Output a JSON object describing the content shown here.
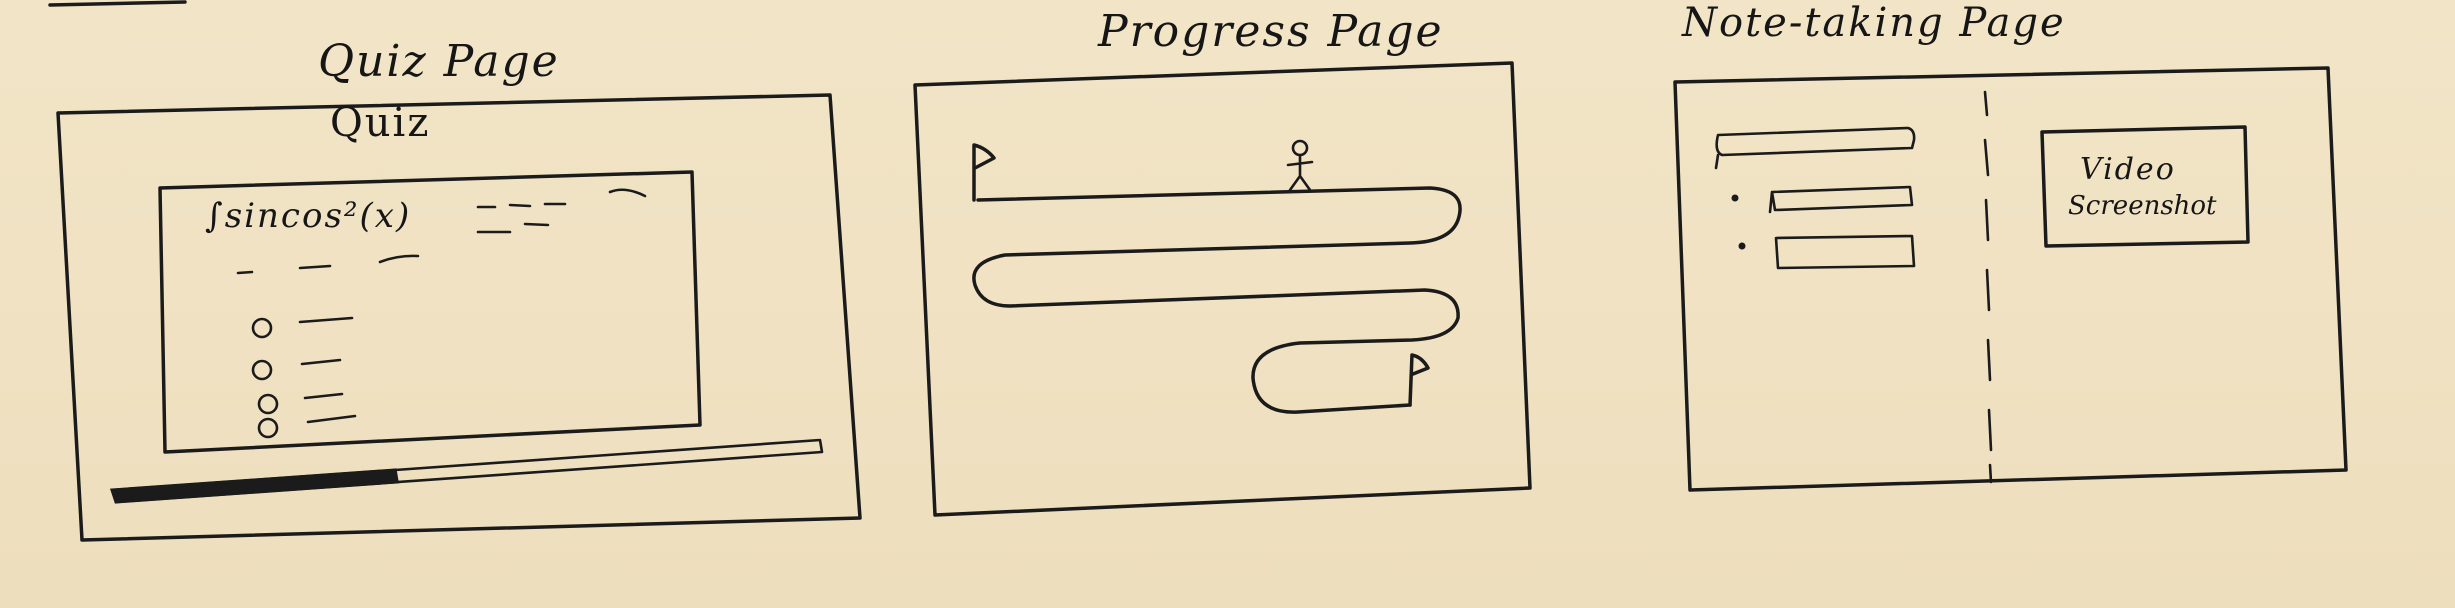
{
  "panels": {
    "quiz": {
      "title": "Quiz Page",
      "heading": "Quiz",
      "question_formula": "∫sincos²(x)",
      "options_count": 4,
      "progress_fraction": 0.4
    },
    "progress": {
      "title": "Progress Page"
    },
    "notes": {
      "title": "Note-taking Page",
      "video_label_line1": "Video",
      "video_label_line2": "Screenshot"
    }
  },
  "ink_color": "#1b1b1b",
  "paper_color": "#efe2c3"
}
